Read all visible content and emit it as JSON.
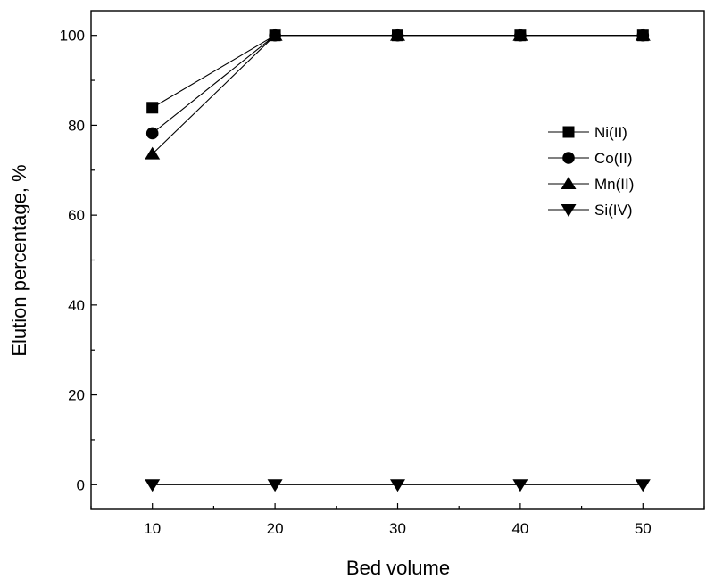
{
  "chart_data": {
    "type": "line",
    "title": "",
    "xlabel": "Bed volume",
    "ylabel": "Elution percentage, %",
    "x": [
      10,
      20,
      30,
      40,
      50
    ],
    "xlim": [
      5,
      55
    ],
    "ylim": [
      -5.5,
      105.5
    ],
    "xticks": [
      10,
      20,
      30,
      40,
      50
    ],
    "yticks": [
      0,
      20,
      40,
      60,
      80,
      100
    ],
    "grid": false,
    "legend_position": "right",
    "color": "#000000",
    "series": [
      {
        "name": "Ni(II)",
        "marker": "square",
        "values": [
          83.9,
          100,
          100,
          100,
          100
        ]
      },
      {
        "name": "Co(II)",
        "marker": "circle",
        "values": [
          78.2,
          100,
          100,
          100,
          100
        ]
      },
      {
        "name": "Mn(II)",
        "marker": "triangle-up",
        "values": [
          73.6,
          100,
          100,
          100,
          100
        ]
      },
      {
        "name": "Si(IV)",
        "marker": "triangle-down",
        "values": [
          0,
          0,
          0,
          0,
          0
        ]
      }
    ]
  }
}
